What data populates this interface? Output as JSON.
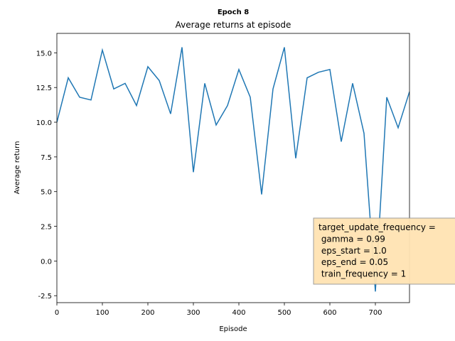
{
  "chart_data": {
    "type": "line",
    "suptitle": "Epoch 8",
    "title": "Average returns at episode",
    "xlabel": "Episode",
    "ylabel": "Average return",
    "x": [
      0,
      25,
      50,
      75,
      100,
      125,
      150,
      175,
      200,
      225,
      250,
      275,
      300,
      325,
      350,
      375,
      400,
      425,
      450,
      475,
      500,
      525,
      550,
      575,
      600,
      625,
      650,
      675,
      700,
      725,
      750,
      775
    ],
    "series": [
      {
        "name": "Average return",
        "color": "#1f77b4",
        "values": [
          10.0,
          13.2,
          11.8,
          11.6,
          15.2,
          12.4,
          12.8,
          11.2,
          14.0,
          13.0,
          10.6,
          15.4,
          6.4,
          12.8,
          9.8,
          11.2,
          13.8,
          11.8,
          4.8,
          12.4,
          15.4,
          7.4,
          13.2,
          13.6,
          13.8,
          8.6,
          12.8,
          9.2,
          -2.2,
          11.8,
          9.6,
          12.2
        ]
      }
    ],
    "xlim": [
      0,
      775
    ],
    "ylim": [
      -3.0,
      16.4
    ],
    "xticks": [
      0,
      100,
      200,
      300,
      400,
      500,
      600,
      700
    ],
    "yticks": [
      {
        "value": -2.5,
        "label": "-2.5"
      },
      {
        "value": 0,
        "label": "0.0"
      },
      {
        "value": 2.5,
        "label": "2.5"
      },
      {
        "value": 5,
        "label": "5.0"
      },
      {
        "value": 7.5,
        "label": "7.5"
      },
      {
        "value": 10,
        "label": "10.0"
      },
      {
        "value": 12.5,
        "label": "12.5"
      },
      {
        "value": 15,
        "label": "15.0"
      }
    ],
    "annotation": [
      "target_update_frequency =",
      " gamma = 0.99",
      " eps_start = 1.0",
      " eps_end = 0.05",
      " train_frequency = 1"
    ]
  }
}
